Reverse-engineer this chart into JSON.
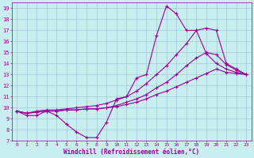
{
  "xlabel": "Windchill (Refroidissement éolien,°C)",
  "bg_color": "#c8eef0",
  "line_color": "#990099",
  "grid_color": "#a0c8d8",
  "xlim": [
    -0.5,
    23.5
  ],
  "ylim": [
    7,
    19.5
  ],
  "xticks": [
    0,
    1,
    2,
    3,
    4,
    5,
    6,
    7,
    8,
    9,
    10,
    11,
    12,
    13,
    14,
    15,
    16,
    17,
    18,
    19,
    20,
    21,
    22,
    23
  ],
  "yticks": [
    7,
    8,
    9,
    10,
    11,
    12,
    13,
    14,
    15,
    16,
    17,
    18,
    19
  ],
  "series": [
    {
      "x": [
        0,
        1,
        2,
        3,
        4,
        5,
        6,
        7,
        8,
        9,
        10,
        11,
        12,
        13,
        14,
        15,
        16,
        17,
        18,
        19,
        20,
        21,
        22,
        23
      ],
      "y": [
        9.7,
        9.3,
        9.3,
        9.7,
        9.3,
        8.5,
        7.8,
        7.3,
        7.3,
        8.7,
        10.8,
        11.0,
        12.7,
        13.0,
        16.5,
        19.2,
        18.5,
        17.0,
        17.0,
        14.9,
        14.0,
        13.5,
        13.2,
        13.0
      ]
    },
    {
      "x": [
        0,
        1,
        2,
        3,
        4,
        5,
        6,
        7,
        8,
        9,
        10,
        11,
        12,
        13,
        14,
        15,
        16,
        17,
        18,
        19,
        20,
        21,
        22,
        23
      ],
      "y": [
        9.7,
        9.5,
        9.7,
        9.8,
        9.8,
        9.9,
        10.0,
        10.1,
        10.2,
        10.4,
        10.7,
        11.0,
        11.5,
        12.2,
        13.0,
        13.8,
        14.8,
        15.8,
        17.0,
        17.2,
        17.0,
        14.0,
        13.5,
        13.0
      ]
    },
    {
      "x": [
        0,
        1,
        2,
        3,
        4,
        5,
        6,
        7,
        8,
        9,
        10,
        11,
        12,
        13,
        14,
        15,
        16,
        17,
        18,
        19,
        20,
        21,
        22,
        23
      ],
      "y": [
        9.7,
        9.5,
        9.6,
        9.7,
        9.7,
        9.8,
        9.8,
        9.9,
        9.9,
        10.0,
        10.2,
        10.5,
        10.8,
        11.2,
        11.8,
        12.3,
        13.0,
        13.8,
        14.5,
        15.0,
        14.8,
        13.9,
        13.4,
        13.0
      ]
    },
    {
      "x": [
        0,
        1,
        2,
        3,
        4,
        5,
        6,
        7,
        8,
        9,
        10,
        11,
        12,
        13,
        14,
        15,
        16,
        17,
        18,
        19,
        20,
        21,
        22,
        23
      ],
      "y": [
        9.7,
        9.5,
        9.6,
        9.7,
        9.7,
        9.8,
        9.8,
        9.9,
        9.9,
        10.0,
        10.1,
        10.3,
        10.5,
        10.8,
        11.2,
        11.5,
        11.9,
        12.3,
        12.7,
        13.1,
        13.5,
        13.2,
        13.1,
        13.0
      ]
    }
  ]
}
